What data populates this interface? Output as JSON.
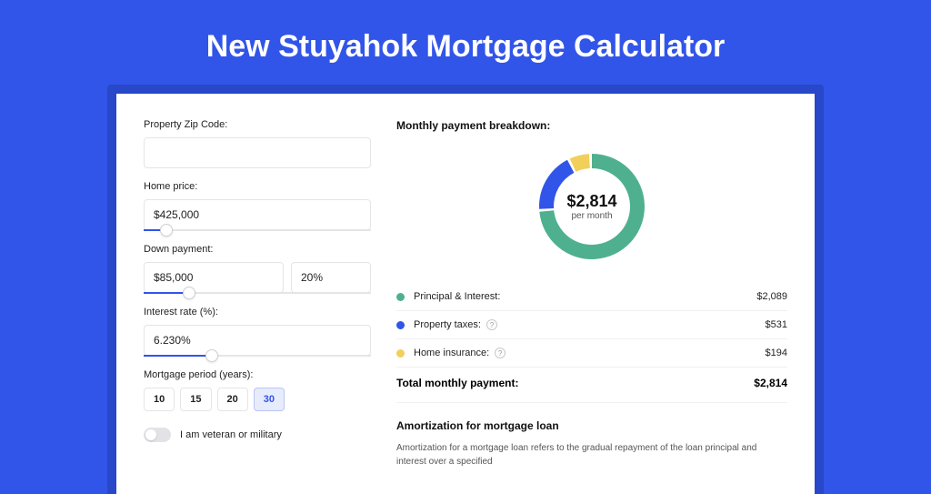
{
  "page": {
    "title": "New Stuyahok Mortgage Calculator",
    "bg_color": "#3155e8",
    "shadow_color": "#2847c9"
  },
  "form": {
    "zip": {
      "label": "Property Zip Code:",
      "value": ""
    },
    "home_price": {
      "label": "Home price:",
      "value": "$425,000",
      "slider_fill_pct": 10
    },
    "down_payment": {
      "label": "Down payment:",
      "value": "$85,000",
      "pct": "20%",
      "slider_fill_pct": 20
    },
    "interest": {
      "label": "Interest rate (%):",
      "value": "6.230%",
      "slider_fill_pct": 30
    },
    "period": {
      "label": "Mortgage period (years):",
      "options": [
        "10",
        "15",
        "20",
        "30"
      ],
      "selected": "30"
    },
    "veteran": {
      "label": "I am veteran or military",
      "on": false
    }
  },
  "breakdown": {
    "title": "Monthly payment breakdown:",
    "total_amount": "$2,814",
    "total_sub": "per month",
    "donut": {
      "segments": [
        {
          "key": "principal",
          "value": 2089,
          "color": "#4fb08f"
        },
        {
          "key": "taxes",
          "value": 531,
          "color": "#3155e8"
        },
        {
          "key": "insurance",
          "value": 194,
          "color": "#f2cf5b"
        }
      ],
      "total": 2814,
      "stroke_width": 16
    },
    "items": [
      {
        "label": "Principal & Interest:",
        "value": "$2,089",
        "color": "#4fb08f",
        "info": false
      },
      {
        "label": "Property taxes:",
        "value": "$531",
        "color": "#3155e8",
        "info": true
      },
      {
        "label": "Home insurance:",
        "value": "$194",
        "color": "#f2cf5b",
        "info": true
      }
    ],
    "total_row": {
      "label": "Total monthly payment:",
      "value": "$2,814"
    }
  },
  "amortization": {
    "title": "Amortization for mortgage loan",
    "text": "Amortization for a mortgage loan refers to the gradual repayment of the loan principal and interest over a specified"
  }
}
